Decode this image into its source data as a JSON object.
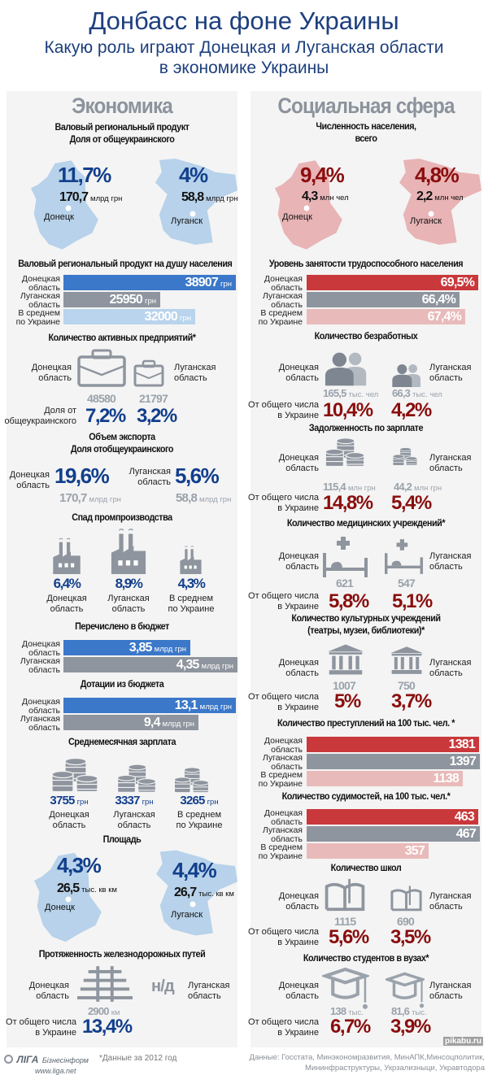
{
  "header": {
    "title": "Донбасс на фоне Украины",
    "subtitle_1": "Какую роль играют Донецкая и Луганская области",
    "subtitle_2": "в экономике Украины"
  },
  "labels": {
    "donetsk": [
      "Донецкая",
      "область"
    ],
    "lugansk": [
      "Луганская",
      "область"
    ],
    "ukraine": [
      "В среднем",
      "по Украине"
    ],
    "share_total": [
      "От общего числа",
      "в Украине"
    ]
  },
  "colors": {
    "title_blue": "#1d3f7d",
    "value_blue": "#123f8c",
    "bar_blue": "#3b78c9",
    "bar_gray": "#8e959e",
    "bar_light_blue": "#b9d4ec",
    "map_blue": "#b7d2ea",
    "value_red": "#8a0e0e",
    "bar_red": "#c9383b",
    "bar_pink": "#e9baba",
    "map_pink": "#e8b4b6",
    "section_gray": "#8c939c",
    "panel_bg": "#f4f4f4"
  },
  "economy": {
    "heading": "Экономика",
    "grp": {
      "title": [
        "Валовый региональный продукт",
        "Доля от общеукраинского"
      ],
      "unit": "млрд грн",
      "donetsk": {
        "share": "11,7%",
        "value": "170,7",
        "city": "Донецк"
      },
      "lugansk": {
        "share": "4%",
        "value": "58,8",
        "city": "Луганск"
      }
    },
    "grp_per_capita": {
      "title": "Валовый региональный продукт на душу населения",
      "unit": "грн",
      "donetsk": "38907",
      "lugansk": "25950",
      "ukraine": "32000"
    },
    "enterprises": {
      "title": "Количество активных предприятий*",
      "share_label": [
        "Доля от",
        "общеукраинского"
      ],
      "donetsk": {
        "count": "48580",
        "share": "7,2%"
      },
      "lugansk": {
        "count": "21797",
        "share": "3,2%"
      }
    },
    "exports": {
      "title": [
        "Объем экспорта",
        "Доля отобщеукраинского"
      ],
      "unit": "млрд грн",
      "donetsk": {
        "share": "19,6%",
        "value": "170,7"
      },
      "lugansk": {
        "share": "5,6%",
        "value": "58,8"
      }
    },
    "industrial_decline": {
      "title": "Спад промпроизводства",
      "donetsk": "6,4%",
      "lugansk": "8,9%",
      "ukraine": "4,3%"
    },
    "budget_transfers": {
      "title": "Перечислено в бюджет",
      "unit": "млрд грн",
      "donetsk": "3,85",
      "lugansk": "4,35"
    },
    "subsidies": {
      "title": "Дотации из бюджета",
      "unit": "млрд грн",
      "donetsk": "13,1",
      "lugansk": "9,4"
    },
    "avg_salary": {
      "title": "Среднемесячная зарплата",
      "unit": "грн",
      "donetsk": "3755",
      "lugansk": "3337",
      "ukraine": "3265"
    },
    "area": {
      "title": "Площадь",
      "unit": "тыс. кв км",
      "donetsk": {
        "share": "4,3%",
        "value": "26,5",
        "city": "Донецк"
      },
      "lugansk": {
        "share": "4,4%",
        "value": "26,7",
        "city": "Луганск"
      }
    },
    "railways": {
      "title": "Протяженность железнодорожных путей",
      "unit": "км",
      "donetsk": {
        "length": "2900",
        "share": "13,4%"
      },
      "lugansk": "н/д"
    }
  },
  "social": {
    "heading": "Социальная сфера",
    "population": {
      "title": [
        "Численность населения,",
        "всего"
      ],
      "unit": "млн чел",
      "donetsk": {
        "share": "9,4%",
        "value": "4,3",
        "city": "Донецк"
      },
      "lugansk": {
        "share": "4,8%",
        "value": "2,2",
        "city": "Луганск"
      }
    },
    "employment": {
      "title": "Уровень занятости трудоспособного населения",
      "donetsk": "69,5%",
      "lugansk": "66,4%",
      "ukraine": "67,4%"
    },
    "unemployed": {
      "title": "Количество безработных",
      "unit": "тыс. чел",
      "donetsk": {
        "value": "165,5",
        "share": "10,4%"
      },
      "lugansk": {
        "value": "66,3",
        "share": "4,2%"
      }
    },
    "wage_arrears": {
      "title": "Задолженность по зарплате",
      "unit": "млн грн",
      "donetsk": {
        "value": "115,4",
        "share": "14,8%"
      },
      "lugansk": {
        "value": "44,2",
        "share": "5,4%"
      }
    },
    "medical": {
      "title": "Количество медицинских учреждений*",
      "donetsk": {
        "value": "621",
        "share": "5,8%"
      },
      "lugansk": {
        "value": "547",
        "share": "5,1%"
      }
    },
    "cultural": {
      "title": [
        "Количество культурных учреждений",
        "(театры, музеи, библиотеки)*"
      ],
      "donetsk": {
        "value": "1007",
        "share": "5%"
      },
      "lugansk": {
        "value": "750",
        "share": "3,7%"
      }
    },
    "crimes": {
      "title": "Количество преступлений на 100 тыс. чел. *",
      "donetsk": "1381",
      "lugansk": "1397",
      "ukraine": "1138"
    },
    "convictions": {
      "title": "Количество судимостей, на 100 тыс. чел.*",
      "donetsk": "463",
      "lugansk": "467",
      "ukraine": "357"
    },
    "schools": {
      "title": "Количество школ",
      "donetsk": {
        "value": "1115",
        "share": "5,6%"
      },
      "lugansk": {
        "value": "690",
        "share": "3,5%"
      }
    },
    "students": {
      "title": "Количество студентов в вузах*",
      "unit": "тыс.",
      "donetsk": {
        "value": "138",
        "share": "6,7%"
      },
      "lugansk": {
        "value": "81,6",
        "share": "3,9%"
      }
    }
  },
  "footer": {
    "logo": "ЛIГА",
    "logo_sub": "Бізнесінформ",
    "logo_url": "www.liga.net",
    "note": "*Данные за 2012 год",
    "sources": [
      "Данные: Госстата, Минэкономразвития, МинАПК,Минсоцполитик,",
      "Мининфраструктуры, Укрзализныци, Укравтодора"
    ],
    "watermark": "pikabu.ru"
  }
}
